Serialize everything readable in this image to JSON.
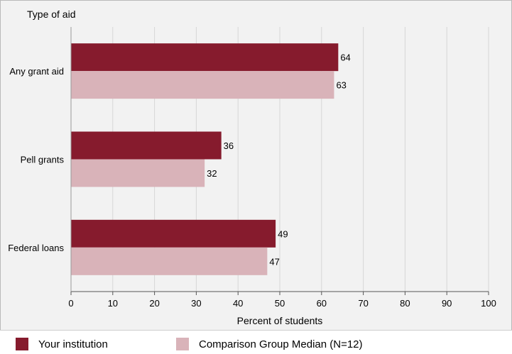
{
  "chart_data": {
    "type": "bar",
    "orientation": "horizontal",
    "title": "Type of aid",
    "categories": [
      "Any grant aid",
      "Pell grants",
      "Federal loans"
    ],
    "series": [
      {
        "name": "Your institution",
        "color": "#861b2d",
        "values": [
          64,
          36,
          49
        ]
      },
      {
        "name": "Comparison Group Median (N=12)",
        "color": "#d9b3b9",
        "values": [
          63,
          32,
          47
        ]
      }
    ],
    "xlabel": "Percent of students",
    "ylabel": "",
    "xlim": [
      0,
      100
    ],
    "xticks": [
      "0",
      "10",
      "20",
      "30",
      "40",
      "50",
      "60",
      "70",
      "80",
      "90",
      "100"
    ],
    "grid": true,
    "legend_position": "bottom"
  }
}
